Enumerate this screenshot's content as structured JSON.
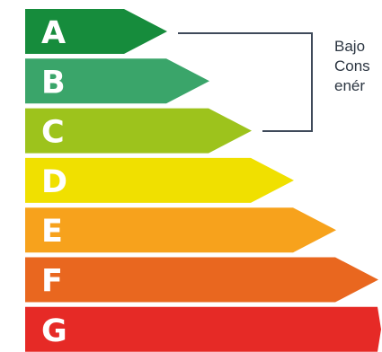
{
  "bands": [
    {
      "letter": "A",
      "color": "#168c3c"
    },
    {
      "letter": "B",
      "color": "#3aa56a"
    },
    {
      "letter": "C",
      "color": "#9dc31c"
    },
    {
      "letter": "D",
      "color": "#f0e000"
    },
    {
      "letter": "E",
      "color": "#f7a21c"
    },
    {
      "letter": "F",
      "color": "#e9671f"
    },
    {
      "letter": "G",
      "color": "#e62a26"
    }
  ],
  "side_text": {
    "line1": "Bajo",
    "line2": "Cons",
    "line3": "enér"
  },
  "bracket_color": "#3f4a5a"
}
